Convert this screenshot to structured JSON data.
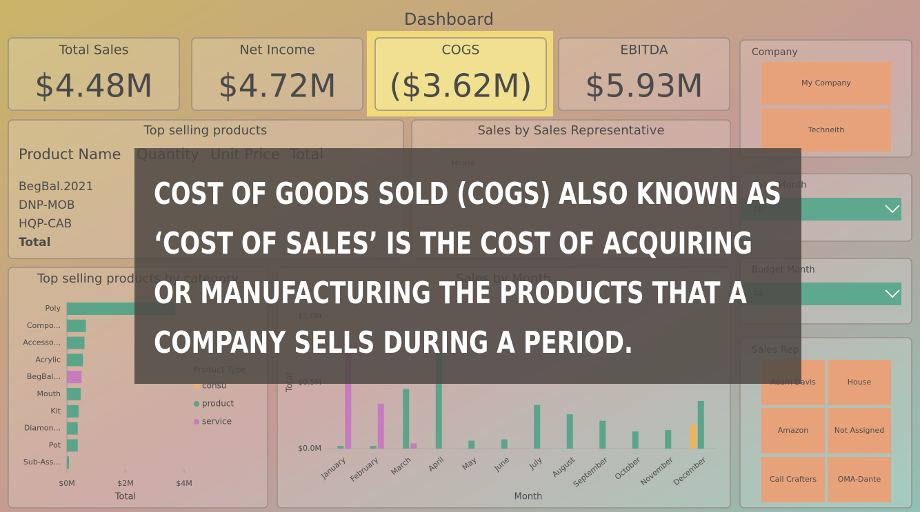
{
  "header": {
    "title": "Dashboard"
  },
  "kpis": [
    {
      "label": "Total Sales",
      "value": "$4.48M"
    },
    {
      "label": "Net Income",
      "value": "$4.72M"
    },
    {
      "label": "COGS",
      "value": "($3.62M)"
    },
    {
      "label": "EBITDA",
      "value": "$5.93M"
    }
  ],
  "top_products_table": {
    "title": "Top selling products",
    "columns": [
      "Product Name",
      "Quantity",
      "Unit Price",
      "Total"
    ],
    "rows": [
      "BegBal.2021",
      "DNP-MOB",
      "HQP-CAB",
      "Total"
    ]
  },
  "sales_rep_chart": {
    "title": "Sales by Sales Representative",
    "categories": [
      "House"
    ]
  },
  "category_chart": {
    "type": "bar",
    "title": "Top selling products by category",
    "categories": [
      "Poly",
      "Compo...",
      "Accesso...",
      "Acrylic",
      "BegBal...",
      "Mouth",
      "Kit",
      "Diamon...",
      "Pot",
      "Sub-Ass..."
    ],
    "series": [
      {
        "name": "consu",
        "color": "#f0b35a",
        "values": [
          null,
          null,
          null,
          null,
          null,
          null,
          null,
          null,
          null,
          null
        ]
      },
      {
        "name": "product",
        "color": "#5aa58a",
        "values": [
          3.7,
          0.65,
          0.6,
          0.55,
          null,
          0.47,
          0.4,
          0.37,
          0.37,
          0.07
        ]
      },
      {
        "name": "service",
        "color": "#c77bbf",
        "values": [
          null,
          null,
          null,
          null,
          0.5,
          null,
          null,
          null,
          null,
          null
        ]
      }
    ],
    "legend_title": "Product Type",
    "xlim": [
      0,
      4.4
    ],
    "xticks": [
      {
        "value": 0,
        "label": "$0M"
      },
      {
        "value": 2,
        "label": "$2M"
      },
      {
        "value": 4,
        "label": "$4M"
      }
    ],
    "x_label": "Total"
  },
  "month_chart": {
    "type": "bar",
    "title": "Sales by Month",
    "categories": [
      "January",
      "February",
      "March",
      "April",
      "May",
      "June",
      "July",
      "August",
      "September",
      "October",
      "November",
      "December"
    ],
    "series": [
      {
        "name": "consu",
        "color": "#f0b35a",
        "values": [
          null,
          null,
          null,
          null,
          null,
          null,
          null,
          null,
          null,
          null,
          null,
          0.18
        ]
      },
      {
        "name": "product",
        "color": "#5aa58a",
        "values": [
          0.02,
          0.02,
          0.45,
          0.75,
          0.06,
          0.07,
          0.33,
          0.26,
          0.21,
          0.13,
          0.14,
          0.36
        ]
      },
      {
        "name": "service",
        "color": "#c77bbf",
        "values": [
          0.8,
          0.34,
          0.04,
          null,
          null,
          null,
          null,
          null,
          null,
          null,
          null,
          null
        ]
      }
    ],
    "ylim": [
      0,
      1.1
    ],
    "yticks": [
      {
        "value": 0,
        "label": "$0.0M"
      },
      {
        "value": 0.5,
        "label": "$0.5M"
      },
      {
        "value": 1,
        "label": "$1.0M"
      }
    ],
    "x_label": "Month",
    "y_label": "Total"
  },
  "slicers": {
    "company": {
      "title": "Company",
      "options": [
        "My Company",
        "Techneith"
      ]
    },
    "sales_month": {
      "title": "Sales Month",
      "value": "All"
    },
    "budget_month": {
      "title": "Budget Month",
      "value": "All"
    },
    "sales_rep": {
      "title": "Sales Rep",
      "options": [
        "Adam Davis",
        "House",
        "Amazon",
        "Not Assigned",
        "Call Crafters",
        "OMA-Dante"
      ]
    }
  },
  "overlay": {
    "lines": [
      "COST OF GOODS SOLD (COGS) ALSO KNOWN AS",
      "‘COST OF SALES’ IS THE COST OF ACQUIRING",
      "OR MANUFACTURING THE PRODUCTS THAT A",
      "COMPANY SELLS DURING A PERIOD."
    ]
  }
}
